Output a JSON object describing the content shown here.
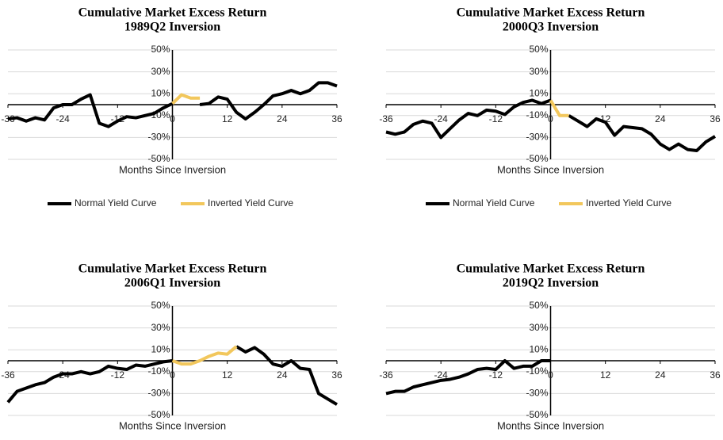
{
  "chart_data": [
    {
      "type": "line",
      "title": "Cumulative Market Excess Return",
      "subtitle": "1989Q2 Inversion",
      "x_label": "Months Since Inversion",
      "x": [
        -36,
        -34,
        -32,
        -30,
        -28,
        -26,
        -24,
        -22,
        -20,
        -18,
        -16,
        -14,
        -12,
        -10,
        -8,
        -6,
        -4,
        -2,
        0,
        2,
        4,
        6,
        8,
        10,
        12,
        14,
        16,
        18,
        20,
        22,
        24,
        26,
        28,
        30,
        32,
        34,
        36
      ],
      "series": [
        {
          "name": "Normal Yield Curve",
          "color": "#000000",
          "values": [
            -13,
            -12,
            -15,
            -12,
            -14,
            -3,
            0,
            0,
            5,
            9,
            -17,
            -20,
            -15,
            -11,
            -12,
            -10,
            -8,
            -3,
            1,
            null,
            null,
            0,
            1,
            7,
            5,
            -7,
            -13,
            -7,
            0,
            8,
            10,
            13,
            10,
            13,
            20,
            20,
            17
          ]
        },
        {
          "name": "Inverted Yield Curve",
          "color": "#f2c75c",
          "values": [
            null,
            null,
            null,
            null,
            null,
            null,
            null,
            null,
            null,
            null,
            null,
            null,
            null,
            null,
            null,
            null,
            null,
            null,
            1,
            9,
            6,
            6,
            null,
            null,
            null,
            null,
            null,
            null,
            null,
            null,
            null,
            null,
            null,
            null,
            null,
            null,
            null
          ]
        }
      ],
      "xlim": [
        -36,
        36
      ],
      "xticks": [
        -36,
        -24,
        -12,
        0,
        12,
        24,
        36
      ],
      "ylim": [
        -50,
        50
      ],
      "yticks": [
        {
          "value": -50,
          "label": "-50%"
        },
        {
          "value": -30,
          "label": "-30%"
        },
        {
          "value": -10,
          "label": "-10%"
        },
        {
          "value": 10,
          "label": "10%"
        },
        {
          "value": 30,
          "label": "30%"
        },
        {
          "value": 50,
          "label": "50%"
        }
      ],
      "grid": true,
      "legend": "bottom"
    },
    {
      "type": "line",
      "title": "Cumulative Market Excess Return",
      "subtitle": "2000Q3 Inversion",
      "x_label": "Months Since Inversion",
      "x": [
        -36,
        -34,
        -32,
        -30,
        -28,
        -26,
        -24,
        -22,
        -20,
        -18,
        -16,
        -14,
        -12,
        -10,
        -8,
        -6,
        -4,
        -2,
        0,
        2,
        4,
        6,
        8,
        10,
        12,
        14,
        16,
        18,
        20,
        22,
        24,
        26,
        28,
        30,
        32,
        34,
        36
      ],
      "series": [
        {
          "name": "Normal Yield Curve",
          "color": "#000000",
          "values": [
            -25,
            -27,
            -25,
            -18,
            -15,
            -17,
            -30,
            -22,
            -14,
            -8,
            -10,
            -5,
            -6,
            -9,
            -2,
            2,
            4,
            1,
            4,
            null,
            -10,
            -15,
            -20,
            -13,
            -16,
            -28,
            -20,
            -21,
            -22,
            -27,
            -36,
            -41,
            -36,
            -41,
            -42,
            -34,
            -29
          ]
        },
        {
          "name": "Inverted Yield Curve",
          "color": "#f2c75c",
          "values": [
            null,
            null,
            null,
            null,
            null,
            null,
            null,
            null,
            null,
            null,
            null,
            null,
            null,
            null,
            null,
            null,
            null,
            null,
            4,
            -10,
            -10,
            null,
            null,
            null,
            null,
            null,
            null,
            null,
            null,
            null,
            null,
            null,
            null,
            null,
            null,
            null,
            null
          ]
        }
      ],
      "xlim": [
        -36,
        36
      ],
      "xticks": [
        -36,
        -24,
        -12,
        0,
        12,
        24,
        36
      ],
      "ylim": [
        -50,
        50
      ],
      "yticks": [
        {
          "value": -50,
          "label": "-50%"
        },
        {
          "value": -30,
          "label": "-30%"
        },
        {
          "value": -10,
          "label": "-10%"
        },
        {
          "value": 10,
          "label": "10%"
        },
        {
          "value": 30,
          "label": "30%"
        },
        {
          "value": 50,
          "label": "50%"
        }
      ],
      "grid": true,
      "legend": "bottom"
    },
    {
      "type": "line",
      "title": "Cumulative Market Excess Return",
      "subtitle": "2006Q1 Inversion",
      "x_label": "Months Since Inversion",
      "x": [
        -36,
        -34,
        -32,
        -30,
        -28,
        -26,
        -24,
        -22,
        -20,
        -18,
        -16,
        -14,
        -12,
        -10,
        -8,
        -6,
        -4,
        -2,
        0,
        2,
        4,
        6,
        8,
        10,
        12,
        14,
        16,
        18,
        20,
        22,
        24,
        26,
        28,
        30,
        32,
        34,
        36
      ],
      "series": [
        {
          "name": "Normal Yield Curve",
          "color": "#000000",
          "values": [
            -38,
            -28,
            -25,
            -22,
            -20,
            -15,
            -12,
            -12,
            -10,
            -12,
            -10,
            -5,
            -7,
            -8,
            -4,
            -5,
            -3,
            -1,
            0,
            null,
            null,
            null,
            null,
            null,
            null,
            13,
            8,
            12,
            6,
            -3,
            -5,
            0,
            -7,
            -8,
            -30,
            -35,
            -40
          ]
        },
        {
          "name": "Inverted Yield Curve",
          "color": "#f2c75c",
          "values": [
            null,
            null,
            null,
            null,
            null,
            null,
            null,
            null,
            null,
            null,
            null,
            null,
            null,
            null,
            null,
            null,
            null,
            null,
            0,
            -3,
            -3,
            0,
            4,
            7,
            6,
            13,
            null,
            null,
            null,
            null,
            null,
            null,
            null,
            null,
            null,
            null,
            null
          ]
        }
      ],
      "xlim": [
        -36,
        36
      ],
      "xticks": [
        -36,
        -24,
        -12,
        0,
        12,
        24,
        36
      ],
      "ylim": [
        -50,
        50
      ],
      "yticks": [
        {
          "value": -50,
          "label": "-50%"
        },
        {
          "value": -30,
          "label": "-30%"
        },
        {
          "value": -10,
          "label": "-10%"
        },
        {
          "value": 10,
          "label": "10%"
        },
        {
          "value": 30,
          "label": "30%"
        },
        {
          "value": 50,
          "label": "50%"
        }
      ],
      "grid": true
    },
    {
      "type": "line",
      "title": "Cumulative Market Excess Return",
      "subtitle": "2019Q2 Inversion",
      "x_label": "Months Since Inversion",
      "x": [
        -36,
        -34,
        -32,
        -30,
        -28,
        -26,
        -24,
        -22,
        -20,
        -18,
        -16,
        -14,
        -12,
        -10,
        -8,
        -6,
        -4,
        -2,
        0
      ],
      "series": [
        {
          "name": "Normal Yield Curve",
          "color": "#000000",
          "values": [
            -30,
            -28,
            -28,
            -24,
            -22,
            -20,
            -18,
            -17,
            -15,
            -12,
            -8,
            -7,
            -8,
            0,
            -7,
            -5,
            -5,
            0,
            0
          ]
        }
      ],
      "xlim": [
        -36,
        36
      ],
      "xticks": [
        -36,
        -24,
        -12,
        0,
        12,
        24,
        36
      ],
      "ylim": [
        -50,
        50
      ],
      "yticks": [
        {
          "value": -50,
          "label": "-50%"
        },
        {
          "value": -30,
          "label": "-30%"
        },
        {
          "value": -10,
          "label": "-10%"
        },
        {
          "value": 10,
          "label": "10%"
        },
        {
          "value": 30,
          "label": "30%"
        },
        {
          "value": 50,
          "label": "50%"
        }
      ],
      "grid": true
    }
  ]
}
